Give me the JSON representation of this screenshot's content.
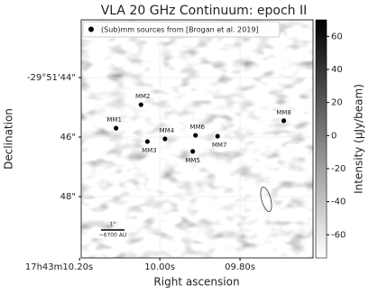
{
  "chart_data": {
    "type": "scatter",
    "title": "VLA 20 GHz Continuum: epoch II",
    "x_label": "Right ascension",
    "y_label": "Declination",
    "colorbar_label": "Intensity (μJy/beam)",
    "legend_label": "(Sub)mm sources from [Brogan et al. 2019]",
    "scale_bar": {
      "label": "1\"",
      "sublabel": "~6700 AU"
    },
    "xlim": [
      10.196,
      9.618
    ],
    "ylim": [
      50.06,
      42.06
    ],
    "xticks": [
      {
        "value": 10.2,
        "label": "17h43m10.20s"
      },
      {
        "value": 10.0,
        "label": "10.00s"
      },
      {
        "value": 9.8,
        "label": "09.80s"
      }
    ],
    "yticks": [
      {
        "value": 44,
        "label": "-29°51'44\""
      },
      {
        "value": 46,
        "label": "46\""
      },
      {
        "value": 48,
        "label": "48\""
      }
    ],
    "clim": [
      -74,
      70
    ],
    "cticks": [
      60,
      40,
      20,
      0,
      -20,
      -40,
      -60
    ],
    "grid": true,
    "point_color": "#000000",
    "names": [
      "MM1",
      "MM2",
      "MM3",
      "MM4",
      "MM5",
      "MM6",
      "MM7",
      "MM8"
    ],
    "x": [
      10.109,
      10.047,
      10.031,
      9.987,
      9.918,
      9.911,
      9.856,
      9.691
    ],
    "y": [
      45.7,
      44.91,
      46.15,
      46.06,
      46.48,
      45.94,
      45.97,
      45.45
    ]
  }
}
